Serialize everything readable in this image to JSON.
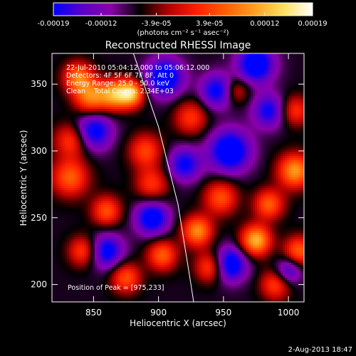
{
  "chart_data": {
    "type": "heatmap",
    "title": "Reconstructed RHESSI Image",
    "xlabel": "Heliocentric X (arcsec)",
    "ylabel": "Heliocentric Y (arcsec)",
    "xlim": [
      818,
      1012
    ],
    "ylim": [
      187,
      373
    ],
    "x_ticks": [
      850,
      900,
      950,
      1000
    ],
    "y_ticks": [
      200,
      250,
      300,
      350
    ],
    "grid": false,
    "colorbar": {
      "range": [
        -0.00019,
        0.00019
      ],
      "tick_values": [
        -0.00019,
        -0.00012,
        -3.9e-05,
        3.9e-05,
        0.00012,
        0.00019
      ],
      "tick_labels": [
        "-0.00019",
        "-0.00012",
        "-3.9e-05",
        "3.9e-05",
        "0.00012",
        "0.00019"
      ],
      "unit_label": "(photons cm⁻² s⁻¹ asec⁻²)",
      "colormap": [
        "#0000ff",
        "#5a00c8",
        "#8a00aa",
        "#000000",
        "#b40000",
        "#ff2000",
        "#ff6000",
        "#ffa020",
        "#ffe060",
        "#ffffff"
      ]
    },
    "annotations": [
      "22-Jul-2010 05:04:12.000 to 05:06:12.000",
      "Detectors: 4F 5F 6F 7F 8F, Att 0",
      "Energy Range: 25.0 - 50.0 keV",
      "Clean    Total Counts: 2.34E+03"
    ],
    "peak_label": "Position of Peak = [975,233]",
    "peak": {
      "x": 975,
      "y": 233
    },
    "limb_curve": [
      [
        880,
        375
      ],
      [
        900,
        318
      ],
      [
        915,
        260
      ],
      [
        925,
        200
      ],
      [
        927,
        187
      ]
    ],
    "blobs": [
      {
        "x": 838,
        "y": 355,
        "amp": 0.00014,
        "s": 8
      },
      {
        "x": 848,
        "y": 340,
        "amp": 0.00015,
        "s": 9
      },
      {
        "x": 866,
        "y": 342,
        "amp": 0.00016,
        "s": 8
      },
      {
        "x": 879,
        "y": 343,
        "amp": 0.00019,
        "s": 7
      },
      {
        "x": 833,
        "y": 308,
        "amp": 0.00011,
        "s": 9
      },
      {
        "x": 832,
        "y": 280,
        "amp": 0.00013,
        "s": 10
      },
      {
        "x": 890,
        "y": 300,
        "amp": 0.00011,
        "s": 9
      },
      {
        "x": 895,
        "y": 275,
        "amp": 0.0001,
        "s": 9
      },
      {
        "x": 925,
        "y": 325,
        "amp": 0.0001,
        "s": 9
      },
      {
        "x": 903,
        "y": 222,
        "amp": 0.00013,
        "s": 8
      },
      {
        "x": 860,
        "y": 255,
        "amp": 0.00012,
        "s": 8
      },
      {
        "x": 842,
        "y": 225,
        "amp": 0.00011,
        "s": 8
      },
      {
        "x": 875,
        "y": 205,
        "amp": 0.00012,
        "s": 8
      },
      {
        "x": 948,
        "y": 265,
        "amp": 0.00012,
        "s": 9
      },
      {
        "x": 930,
        "y": 240,
        "amp": 0.00016,
        "s": 8
      },
      {
        "x": 940,
        "y": 213,
        "amp": 0.00012,
        "s": 8
      },
      {
        "x": 960,
        "y": 345,
        "amp": 8e-05,
        "s": 7
      },
      {
        "x": 975,
        "y": 233,
        "amp": 0.00019,
        "s": 8
      },
      {
        "x": 985,
        "y": 260,
        "amp": 0.00013,
        "s": 8
      },
      {
        "x": 1005,
        "y": 285,
        "amp": 0.00017,
        "s": 9
      },
      {
        "x": 1008,
        "y": 225,
        "amp": 0.00013,
        "s": 8
      },
      {
        "x": 1005,
        "y": 330,
        "amp": 0.0001,
        "s": 8
      },
      {
        "x": 990,
        "y": 200,
        "amp": 0.00011,
        "s": 8
      },
      {
        "x": 850,
        "y": 315,
        "amp": -0.00014,
        "s": 10
      },
      {
        "x": 905,
        "y": 355,
        "amp": -0.00016,
        "s": 10
      },
      {
        "x": 955,
        "y": 300,
        "amp": -0.00017,
        "s": 11
      },
      {
        "x": 975,
        "y": 365,
        "amp": -0.00016,
        "s": 10
      },
      {
        "x": 985,
        "y": 330,
        "amp": -0.00012,
        "s": 9
      },
      {
        "x": 895,
        "y": 250,
        "amp": -0.00015,
        "s": 9
      },
      {
        "x": 860,
        "y": 225,
        "amp": -0.00014,
        "s": 9
      },
      {
        "x": 955,
        "y": 215,
        "amp": -0.00016,
        "s": 9
      },
      {
        "x": 920,
        "y": 290,
        "amp": -0.00012,
        "s": 9
      },
      {
        "x": 1000,
        "y": 210,
        "amp": -0.00011,
        "s": 7
      },
      {
        "x": 945,
        "y": 345,
        "amp": -0.00013,
        "s": 9
      }
    ],
    "baseline": -7e-05
  },
  "footer_date": "2-Aug-2013 18:47"
}
